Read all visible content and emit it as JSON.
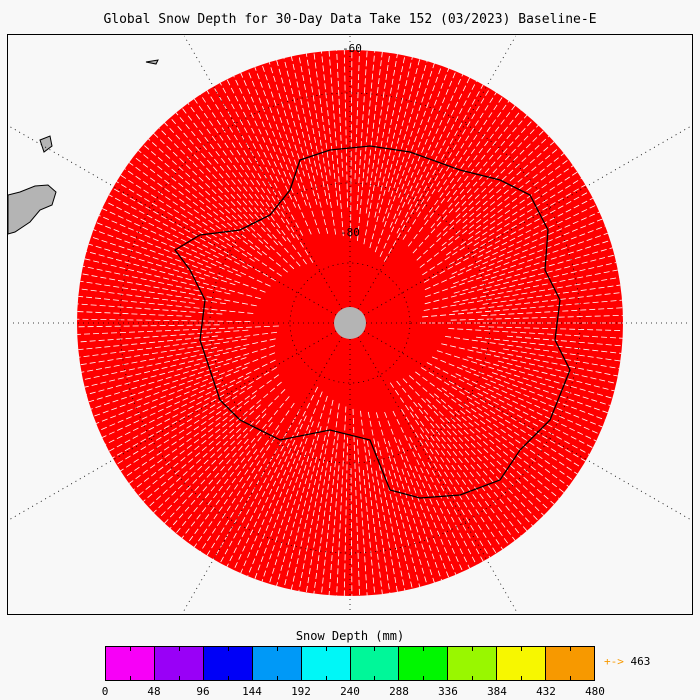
{
  "title": "Global Snow Depth for 30-Day Data Take 152 (03/2023) Baseline-E",
  "map": {
    "projection": "south polar stereographic",
    "latitude_labels": [
      "-60",
      "-80"
    ],
    "data_color": "#ff0000",
    "no_data_color": "#b4b4b4",
    "coastline_color": "#000000"
  },
  "colorbar": {
    "title": "Snow Depth (mm)",
    "ticks": [
      "0",
      "48",
      "96",
      "144",
      "192",
      "240",
      "288",
      "336",
      "384",
      "432",
      "480"
    ],
    "colors": [
      "#f700f7",
      "#9900f7",
      "#0000f7",
      "#0099f7",
      "#00f7f7",
      "#00f799",
      "#00f700",
      "#99f700",
      "#f7f700",
      "#f79900"
    ],
    "max_arrow": "+->",
    "max_arrow_color": "#f79900",
    "max_value": "463"
  }
}
